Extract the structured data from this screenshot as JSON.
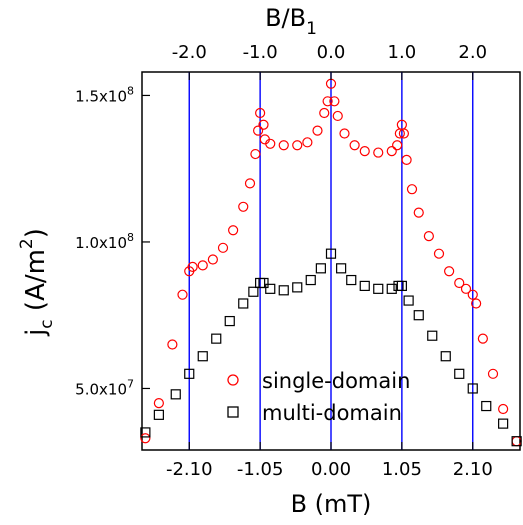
{
  "chart_data": {
    "type": "scatter",
    "xlabel": "B (mT)",
    "top_xlabel": "B/B₁",
    "top_xlabel_base": "B/B",
    "top_xlabel_sub": "1",
    "ylabel": "j",
    "ylabel_sub": "c",
    "ylabel_unit": " (A/m",
    "ylabel_sup": "2",
    "ylabel_close": ")",
    "xlim": [
      -2.8,
      2.8
    ],
    "ylim": [
      29000000,
      158000000
    ],
    "x_ticks": [
      {
        "value": -2.1,
        "label": "-2.10"
      },
      {
        "value": -1.05,
        "label": "-1.05"
      },
      {
        "value": 0.0,
        "label": "0.00"
      },
      {
        "value": 1.05,
        "label": "1.05"
      },
      {
        "value": 2.1,
        "label": "2.10"
      }
    ],
    "top_ticks": [
      {
        "value": -2.1,
        "label": "-2.0"
      },
      {
        "value": -1.05,
        "label": "-1.0"
      },
      {
        "value": 0.0,
        "label": "0.0"
      },
      {
        "value": 1.05,
        "label": "1.0"
      },
      {
        "value": 2.1,
        "label": "2.0"
      }
    ],
    "y_ticks": [
      {
        "value": 50000000,
        "mantissa": "5.0x10",
        "exp": "7"
      },
      {
        "value": 100000000,
        "mantissa": "1.0x10",
        "exp": "8"
      },
      {
        "value": 150000000,
        "mantissa": "1.5x10",
        "exp": "8"
      }
    ],
    "vlines": [
      -2.1,
      -1.05,
      0.0,
      1.05,
      2.1
    ],
    "vline_color": "#0000ff",
    "legend_position": "bottom-center",
    "series": [
      {
        "name": "single-domain",
        "marker": "circle",
        "color": "#ff0000",
        "points": [
          [
            -2.75,
            33000000
          ],
          [
            -2.55,
            45000000
          ],
          [
            -2.35,
            65000000
          ],
          [
            -2.2,
            82000000
          ],
          [
            -2.1,
            90000000
          ],
          [
            -2.05,
            91500000
          ],
          [
            -1.9,
            92000000
          ],
          [
            -1.75,
            94000000
          ],
          [
            -1.6,
            98000000
          ],
          [
            -1.45,
            104000000
          ],
          [
            -1.3,
            112000000
          ],
          [
            -1.2,
            120000000
          ],
          [
            -1.12,
            130000000
          ],
          [
            -1.08,
            138000000
          ],
          [
            -1.05,
            144000000
          ],
          [
            -1.0,
            140000000
          ],
          [
            -0.98,
            135000000
          ],
          [
            -0.9,
            133500000
          ],
          [
            -0.7,
            133000000
          ],
          [
            -0.5,
            133000000
          ],
          [
            -0.35,
            134000000
          ],
          [
            -0.2,
            138000000
          ],
          [
            -0.1,
            144000000
          ],
          [
            -0.05,
            148000000
          ],
          [
            0.0,
            154000000
          ],
          [
            0.05,
            148000000
          ],
          [
            0.1,
            143000000
          ],
          [
            0.2,
            137000000
          ],
          [
            0.35,
            133000000
          ],
          [
            0.5,
            131000000
          ],
          [
            0.7,
            130500000
          ],
          [
            0.9,
            131000000
          ],
          [
            0.98,
            133000000
          ],
          [
            1.02,
            137000000
          ],
          [
            1.05,
            140000000
          ],
          [
            1.08,
            137000000
          ],
          [
            1.12,
            128000000
          ],
          [
            1.2,
            118000000
          ],
          [
            1.3,
            110000000
          ],
          [
            1.45,
            102000000
          ],
          [
            1.6,
            96000000
          ],
          [
            1.75,
            90000000
          ],
          [
            1.9,
            86000000
          ],
          [
            2.0,
            84000000
          ],
          [
            2.1,
            82000000
          ],
          [
            2.15,
            79000000
          ],
          [
            2.25,
            67000000
          ],
          [
            2.4,
            55000000
          ],
          [
            2.55,
            43000000
          ],
          [
            2.75,
            32000000
          ]
        ]
      },
      {
        "name": "multi-domain",
        "marker": "square",
        "color": "#000000",
        "points": [
          [
            -2.75,
            35000000
          ],
          [
            -2.55,
            41000000
          ],
          [
            -2.3,
            48000000
          ],
          [
            -2.1,
            55000000
          ],
          [
            -1.9,
            61000000
          ],
          [
            -1.7,
            67000000
          ],
          [
            -1.5,
            73000000
          ],
          [
            -1.3,
            79000000
          ],
          [
            -1.15,
            83000000
          ],
          [
            -1.05,
            86000000
          ],
          [
            -1.0,
            86000000
          ],
          [
            -0.9,
            84000000
          ],
          [
            -0.7,
            83500000
          ],
          [
            -0.5,
            84500000
          ],
          [
            -0.3,
            87000000
          ],
          [
            -0.15,
            91000000
          ],
          [
            0.0,
            96000000
          ],
          [
            0.15,
            91000000
          ],
          [
            0.3,
            87000000
          ],
          [
            0.5,
            85000000
          ],
          [
            0.7,
            84000000
          ],
          [
            0.9,
            84000000
          ],
          [
            1.0,
            85000000
          ],
          [
            1.05,
            85000000
          ],
          [
            1.15,
            80000000
          ],
          [
            1.3,
            75000000
          ],
          [
            1.5,
            68000000
          ],
          [
            1.7,
            61000000
          ],
          [
            1.9,
            55000000
          ],
          [
            2.1,
            50000000
          ],
          [
            2.3,
            44000000
          ],
          [
            2.55,
            38000000
          ],
          [
            2.75,
            32000000
          ]
        ]
      }
    ]
  }
}
